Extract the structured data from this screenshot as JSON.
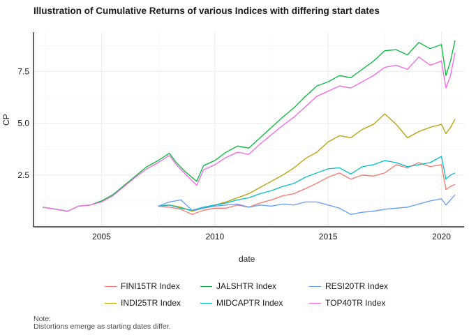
{
  "chart_data": {
    "type": "line",
    "title": "Illustration of Cumulative Returns of various Indices with differing start dates",
    "xlabel": "date",
    "ylabel": "CP",
    "xlim": [
      2002.0,
      2021.0
    ],
    "ylim": [
      0.0,
      9.4
    ],
    "xticks": [
      2005,
      2010,
      2015,
      2020
    ],
    "xtick_labels": [
      "2005",
      "2010",
      "2015",
      "2020"
    ],
    "yticks": [
      2.5,
      5.0,
      7.5
    ],
    "ytick_labels": [
      "2.5",
      "5.0",
      "7.5"
    ],
    "grid": true,
    "legend_position": "bottom",
    "series": [
      {
        "name": "FINI15TR Index",
        "color": "#F8766D",
        "x": [
          2007.5,
          2008.0,
          2008.5,
          2009.0,
          2009.5,
          2010.0,
          2010.5,
          2011.0,
          2011.5,
          2012.0,
          2012.5,
          2013.0,
          2013.5,
          2014.0,
          2014.5,
          2015.0,
          2015.5,
          2016.0,
          2016.5,
          2017.0,
          2017.5,
          2018.0,
          2018.5,
          2019.0,
          2019.5,
          2020.0,
          2020.2,
          2020.4,
          2020.6
        ],
        "y": [
          1.0,
          0.95,
          0.85,
          0.6,
          0.8,
          0.9,
          0.9,
          1.05,
          0.95,
          1.15,
          1.3,
          1.5,
          1.6,
          1.85,
          2.1,
          2.4,
          2.6,
          2.3,
          2.5,
          2.45,
          2.6,
          3.0,
          2.85,
          3.1,
          2.9,
          3.0,
          1.8,
          1.95,
          2.05
        ]
      },
      {
        "name": "INDI25TR Index",
        "color": "#B79F00",
        "x": [
          2007.5,
          2008.0,
          2008.5,
          2009.0,
          2009.5,
          2010.0,
          2010.5,
          2011.0,
          2011.5,
          2012.0,
          2012.5,
          2013.0,
          2013.5,
          2014.0,
          2014.5,
          2015.0,
          2015.5,
          2016.0,
          2016.5,
          2017.0,
          2017.5,
          2018.0,
          2018.5,
          2019.0,
          2019.5,
          2020.0,
          2020.2,
          2020.4,
          2020.6
        ],
        "y": [
          1.0,
          1.05,
          0.95,
          0.75,
          0.9,
          1.05,
          1.2,
          1.4,
          1.6,
          1.9,
          2.2,
          2.5,
          2.85,
          3.3,
          3.6,
          4.1,
          4.4,
          4.3,
          4.7,
          4.95,
          5.45,
          4.95,
          4.3,
          4.6,
          4.8,
          4.95,
          4.5,
          4.8,
          5.2
        ]
      },
      {
        "name": "JALSHTR Index",
        "color": "#00BA38",
        "x": [
          2002.4,
          2003.0,
          2003.5,
          2004.0,
          2004.5,
          2005.0,
          2005.5,
          2006.0,
          2006.5,
          2007.0,
          2007.5,
          2008.0,
          2008.3,
          2008.7,
          2009.2,
          2009.5,
          2010.0,
          2010.5,
          2011.0,
          2011.5,
          2012.0,
          2012.5,
          2013.0,
          2013.5,
          2014.0,
          2014.5,
          2015.0,
          2015.5,
          2016.0,
          2016.5,
          2017.0,
          2017.5,
          2018.0,
          2018.5,
          2019.0,
          2019.5,
          2020.0,
          2020.2,
          2020.4,
          2020.6
        ],
        "y": [
          0.95,
          0.85,
          0.75,
          1.0,
          1.05,
          1.25,
          1.55,
          2.0,
          2.45,
          2.9,
          3.2,
          3.55,
          3.1,
          2.65,
          2.2,
          2.95,
          3.2,
          3.6,
          3.9,
          3.8,
          4.3,
          4.8,
          5.3,
          5.75,
          6.3,
          6.8,
          7.0,
          7.3,
          7.2,
          7.6,
          8.0,
          8.5,
          8.55,
          8.3,
          8.9,
          8.6,
          8.8,
          7.3,
          8.0,
          9.0
        ]
      },
      {
        "name": "MIDCAPTR Index",
        "color": "#00BFC4",
        "x": [
          2007.5,
          2008.0,
          2008.5,
          2009.0,
          2009.5,
          2010.0,
          2010.5,
          2011.0,
          2011.5,
          2012.0,
          2012.5,
          2013.0,
          2013.5,
          2014.0,
          2014.5,
          2015.0,
          2015.5,
          2016.0,
          2016.5,
          2017.0,
          2017.5,
          2018.0,
          2018.5,
          2019.0,
          2019.5,
          2020.0,
          2020.2,
          2020.4,
          2020.6
        ],
        "y": [
          1.0,
          1.05,
          0.9,
          0.8,
          0.95,
          1.05,
          1.15,
          1.3,
          1.4,
          1.6,
          1.75,
          1.95,
          2.1,
          2.4,
          2.6,
          2.8,
          2.85,
          2.55,
          2.9,
          3.0,
          3.2,
          3.1,
          2.9,
          3.0,
          3.1,
          3.4,
          2.3,
          2.5,
          2.6
        ]
      },
      {
        "name": "RESI20TR Index",
        "color": "#619CFF",
        "x": [
          2007.5,
          2008.0,
          2008.5,
          2009.0,
          2009.5,
          2010.0,
          2010.5,
          2011.0,
          2011.5,
          2012.0,
          2012.5,
          2013.0,
          2013.5,
          2014.0,
          2014.5,
          2015.0,
          2015.5,
          2016.0,
          2016.5,
          2017.0,
          2017.5,
          2018.0,
          2018.5,
          2019.0,
          2019.5,
          2020.0,
          2020.2,
          2020.4,
          2020.6
        ],
        "y": [
          1.0,
          1.2,
          1.3,
          0.8,
          0.9,
          1.0,
          1.05,
          1.1,
          0.95,
          1.05,
          1.0,
          1.1,
          1.05,
          1.2,
          1.2,
          1.05,
          0.9,
          0.6,
          0.7,
          0.75,
          0.85,
          0.9,
          0.95,
          1.1,
          1.25,
          1.35,
          1.05,
          1.3,
          1.55
        ]
      },
      {
        "name": "TOP40TR Index",
        "color": "#F564E3",
        "x": [
          2002.4,
          2003.0,
          2003.5,
          2004.0,
          2004.5,
          2005.0,
          2005.5,
          2006.0,
          2006.5,
          2007.0,
          2007.5,
          2008.0,
          2008.3,
          2008.7,
          2009.2,
          2009.5,
          2010.0,
          2010.5,
          2011.0,
          2011.5,
          2012.0,
          2012.5,
          2013.0,
          2013.5,
          2014.0,
          2014.5,
          2015.0,
          2015.5,
          2016.0,
          2016.5,
          2017.0,
          2017.5,
          2018.0,
          2018.5,
          2019.0,
          2019.5,
          2020.0,
          2020.2,
          2020.4,
          2020.6
        ],
        "y": [
          0.95,
          0.85,
          0.75,
          1.0,
          1.05,
          1.2,
          1.5,
          1.95,
          2.4,
          2.8,
          3.1,
          3.45,
          3.0,
          2.55,
          2.0,
          2.75,
          3.0,
          3.35,
          3.6,
          3.5,
          4.0,
          4.45,
          4.9,
          5.3,
          5.8,
          6.3,
          6.55,
          6.8,
          6.7,
          7.0,
          7.3,
          7.7,
          7.8,
          7.6,
          8.2,
          7.8,
          8.0,
          6.7,
          7.3,
          8.4
        ]
      }
    ]
  },
  "legend": {
    "items": [
      {
        "label": "FINI15TR Index",
        "color": "#F8766D"
      },
      {
        "label": "JALSHTR Index",
        "color": "#00BA38"
      },
      {
        "label": "RESI20TR Index",
        "color": "#619CFF"
      },
      {
        "label": "INDI25TR Index",
        "color": "#B79F00"
      },
      {
        "label": "MIDCAPTR Index",
        "color": "#00BFC4"
      },
      {
        "label": "TOP40TR Index",
        "color": "#F564E3"
      }
    ]
  },
  "note": {
    "line1": "Note:",
    "line2": "Distortions emerge as starting dates differ."
  }
}
